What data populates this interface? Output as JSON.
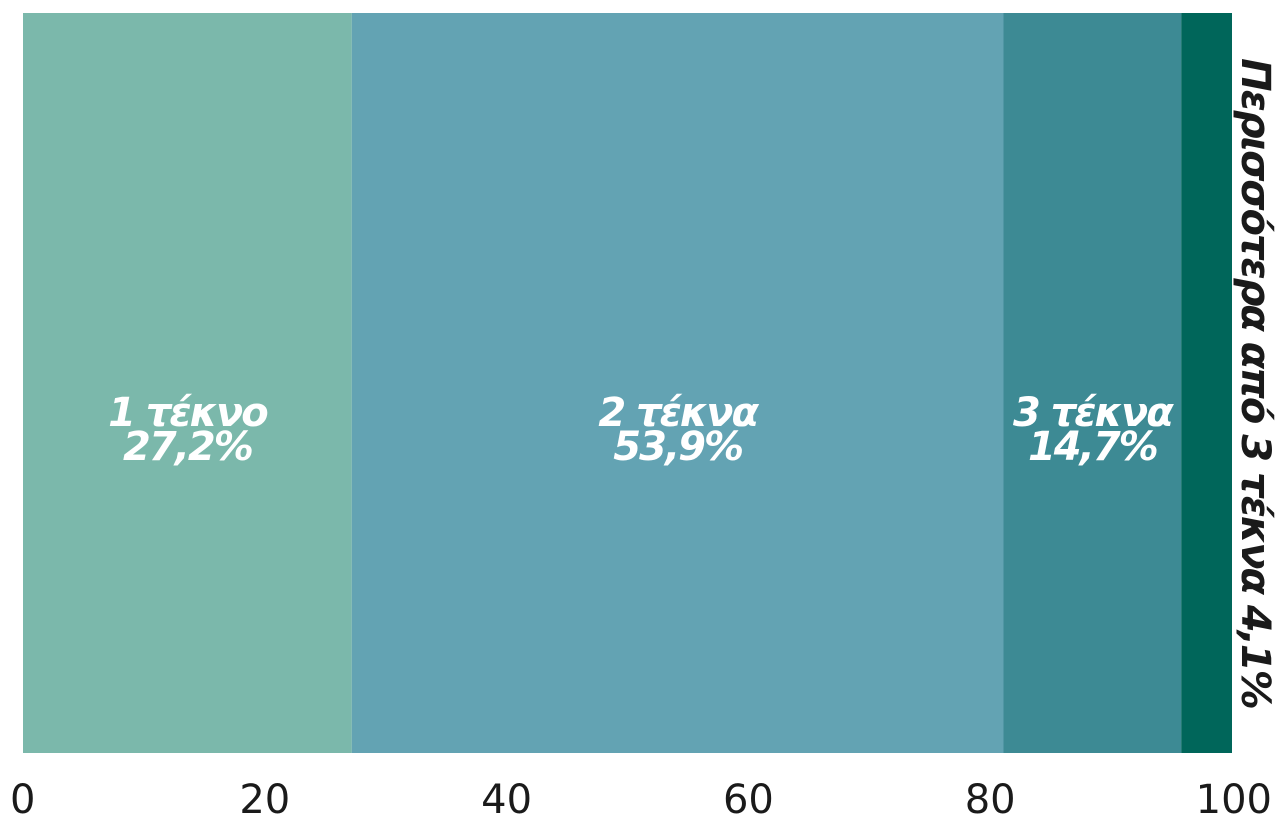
{
  "chart_data": {
    "type": "bar",
    "orientation": "horizontal-stacked-100",
    "title": "",
    "xlabel": "",
    "ylabel": "",
    "xlim": [
      0,
      100
    ],
    "ticks": [
      "0",
      "20",
      "40",
      "60",
      "80",
      "100"
    ],
    "tick_values": [
      0,
      20,
      40,
      60,
      80,
      100
    ],
    "grid": false,
    "legend": "none",
    "segments": [
      {
        "name": "1 τέκνο",
        "value": 27.2,
        "value_label": "27,2%",
        "color": "#7BB8AB",
        "label_position": "inside"
      },
      {
        "name": "2 τέκνα",
        "value": 53.9,
        "value_label": "53,9%",
        "color": "#63A3B3",
        "label_position": "inside"
      },
      {
        "name": "3 τέκνα",
        "value": 14.7,
        "value_label": "14,7%",
        "color": "#3D8A94",
        "label_position": "inside"
      },
      {
        "name": "Περισσότερα από 3 τέκνα",
        "value": 4.1,
        "value_label": "4,1%",
        "color": "#00665A",
        "label_position": "outside-right-vertical"
      }
    ]
  }
}
